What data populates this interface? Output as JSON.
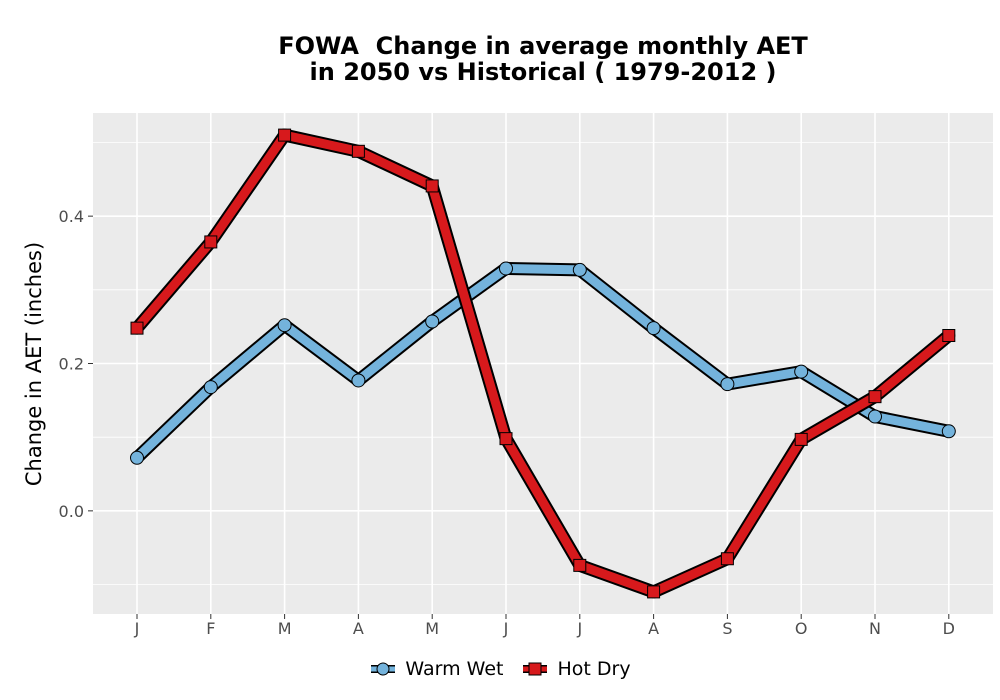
{
  "chart_data": {
    "type": "line",
    "title_lines": [
      "FOWA  Change in average monthly AET",
      "in 2050 vs Historical ( 1979-2012 )"
    ],
    "xlabel": "",
    "ylabel": "Change in AET (inches)",
    "categories": [
      "J",
      "F",
      "M",
      "A",
      "M",
      "J",
      "J",
      "A",
      "S",
      "O",
      "N",
      "D"
    ],
    "y_ticks": [
      0.0,
      0.2,
      0.4
    ],
    "y_tick_labels": [
      "0.0",
      "0.2",
      "0.4"
    ],
    "ylim": [
      -0.14,
      0.54
    ],
    "grid": true,
    "legend_position": "bottom",
    "series": [
      {
        "name": "Warm Wet",
        "color": "#74b3dc",
        "marker": "circle",
        "values": [
          0.072,
          0.168,
          0.252,
          0.177,
          0.257,
          0.329,
          0.327,
          0.248,
          0.172,
          0.189,
          0.128,
          0.108
        ]
      },
      {
        "name": "Hot Dry",
        "color": "#d7191c",
        "marker": "square",
        "values": [
          0.248,
          0.365,
          0.51,
          0.488,
          0.441,
          0.098,
          -0.074,
          -0.11,
          -0.065,
          0.097,
          0.155,
          0.238
        ]
      }
    ]
  }
}
